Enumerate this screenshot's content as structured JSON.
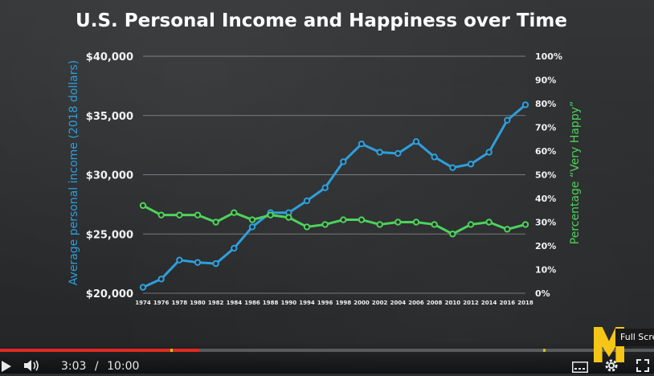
{
  "chart_data": {
    "type": "line",
    "title": "U.S. Personal Income and Happiness over Time",
    "x": [
      1974,
      1976,
      1978,
      1980,
      1982,
      1984,
      1986,
      1988,
      1990,
      1994,
      1996,
      1998,
      2000,
      2002,
      2004,
      2006,
      2008,
      2010,
      2012,
      2014,
      2016,
      2018
    ],
    "series": [
      {
        "axis": "left",
        "color": "#2e9fdc",
        "values": [
          20500,
          21200,
          22800,
          22600,
          22500,
          23800,
          25600,
          26800,
          26800,
          27800,
          28900,
          31100,
          32600,
          31900,
          31800,
          32800,
          31500,
          30600,
          30900,
          31900,
          34600,
          35900
        ]
      },
      {
        "axis": "right",
        "color": "#4dd35a",
        "values": [
          37,
          33,
          33,
          33,
          30,
          34,
          31,
          33,
          32,
          28,
          29,
          31,
          31,
          29,
          30,
          30,
          29,
          25,
          29,
          30,
          27,
          29
        ]
      }
    ],
    "ylabel_left": "Average personal income (2018 dollars)",
    "ylabel_right": "Percentage “Very Happy”",
    "ylim_left": [
      20000,
      40000
    ],
    "ylim_right": [
      0,
      100
    ],
    "yticks_left": [
      "$20,000",
      "$25,000",
      "$30,000",
      "$35,000",
      "$40,000"
    ],
    "yticks_right": [
      "0%",
      "10%",
      "20%",
      "30%",
      "40%",
      "50%",
      "60%",
      "70%",
      "80%",
      "90%",
      "100%"
    ],
    "grid": true
  },
  "player": {
    "current_time": "3:03",
    "separator": "/",
    "duration": "10:00",
    "progress": 0.305,
    "tooltip": "Full Screen",
    "colors": {
      "played": "#e02a20",
      "marker": "#c9c221"
    }
  }
}
